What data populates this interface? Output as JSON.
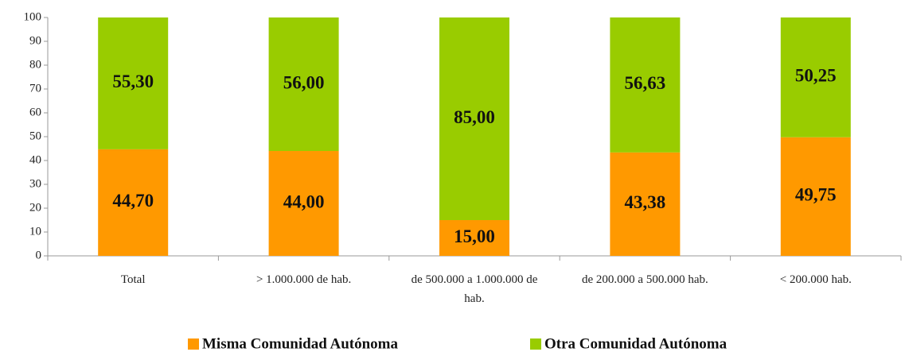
{
  "chart_data": {
    "type": "stacked_bar",
    "categories": [
      "Total",
      "> 1.000.000 de hab.",
      "de 500.000 a 1.000.000 de hab.",
      "de 200.000 a 500.000 hab.",
      "< 200.000 hab."
    ],
    "series": [
      {
        "name": "Misma Comunidad Autónoma",
        "color": "#FF9900",
        "values": [
          44.7,
          44.0,
          15.0,
          43.38,
          49.75
        ],
        "value_labels": [
          "44,70",
          "44,00",
          "15,00",
          "43,38",
          "49,75"
        ]
      },
      {
        "name": "Otra Comunidad Autónoma",
        "color": "#99CC00",
        "values": [
          55.3,
          56.0,
          85.0,
          56.63,
          50.25
        ],
        "value_labels": [
          "55,30",
          "56,00",
          "85,00",
          "56,63",
          "50,25"
        ]
      }
    ],
    "ylim": [
      0,
      100
    ],
    "yticks": [
      0,
      10,
      20,
      30,
      40,
      50,
      60,
      70,
      80,
      90,
      100
    ],
    "legend": "bottom"
  }
}
